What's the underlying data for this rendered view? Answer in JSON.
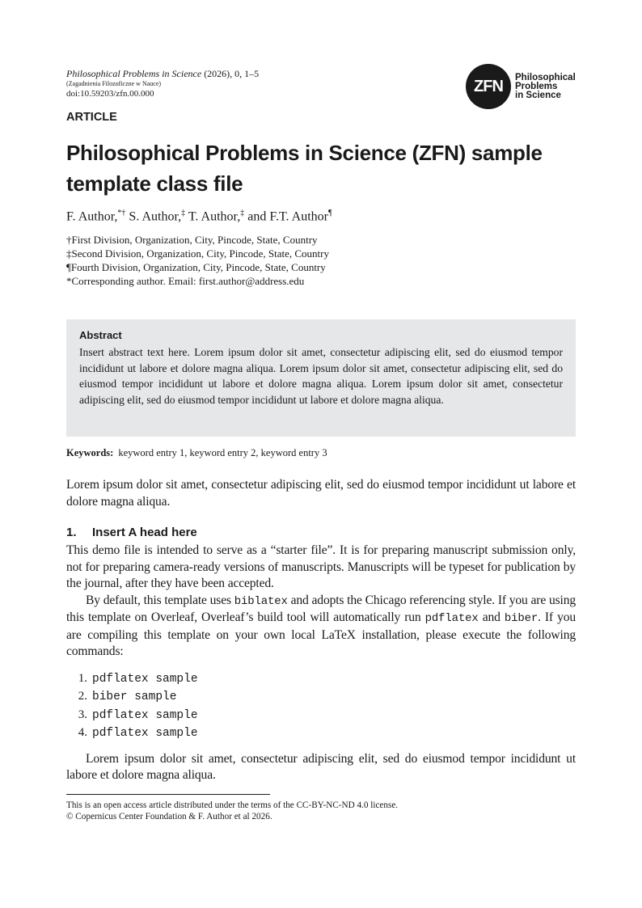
{
  "header": {
    "journal": "Philosophical Problems in Science",
    "year_issue": "(2026), 0, 1–5",
    "subtitle": "(Zagadnienia Filozoficzne w Nauce)",
    "doi": "doi:10.59203/zfn.00.000",
    "logo_mark": "ZFN",
    "logo_name": [
      "Philosophical",
      "Problems",
      "in Science"
    ]
  },
  "article_type": "ARTICLE",
  "title": "Philosophical Problems in Science (ZFN) sample template class file",
  "authors": [
    {
      "name": "F. Author,",
      "mark": "*†"
    },
    {
      "name": " S. Author,",
      "mark": "‡"
    },
    {
      "name": " T. Author,",
      "mark": "‡"
    },
    {
      "name": " and F.T. Author",
      "mark": "¶"
    }
  ],
  "affiliations": [
    "†First Division, Organization, City, Pincode, State, Country",
    "‡Second Division, Organization, City, Pincode, State, Country",
    "¶Fourth Division, Organization, City, Pincode, State, Country",
    "*Corresponding author. Email: first.author@address.edu"
  ],
  "abstract": {
    "heading": "Abstract",
    "text": "Insert abstract text here. Lorem ipsum dolor sit amet, consectetur adipiscing elit, sed do eiusmod tempor incididunt ut labore et dolore magna aliqua. Lorem ipsum dolor sit amet, consectetur adipiscing elit, sed do eiusmod tempor incididunt ut labore et dolore magna aliqua. Lorem ipsum dolor sit amet, consectetur adipiscing elit, sed do eiusmod tempor incididunt ut labore et dolore magna aliqua."
  },
  "keywords": {
    "label": "Keywords:",
    "text": "keyword entry 1, keyword entry 2, keyword entry 3"
  },
  "intro": "Lorem ipsum dolor sit amet, consectetur adipiscing elit, sed do eiusmod tempor incididunt ut labore et dolore magna aliqua.",
  "section1": {
    "number": "1.",
    "title": "Insert A head here",
    "para1": "This demo file is intended to serve as a “starter file”. It is for preparing manuscript submission only, not for preparing camera-ready versions of manuscripts. Manuscripts will be typeset for publication by the journal, after they have been accepted.",
    "para2": {
      "t1": "By default, this template uses ",
      "c1": "biblatex",
      "t2": " and adopts the Chicago referencing style. If you are using this template on Overleaf, Overleaf’s build tool will automatically run ",
      "c2": "pdflatex",
      "t3": " and ",
      "c3": "biber",
      "t4": ". If you are compiling this template on your own local LaTeX installation, please execute the following commands:"
    },
    "commands": [
      {
        "n": "1.",
        "cmd": "pdflatex sample"
      },
      {
        "n": "2.",
        "cmd": "biber sample"
      },
      {
        "n": "3.",
        "cmd": "pdflatex sample"
      },
      {
        "n": "4.",
        "cmd": "pdflatex sample"
      }
    ],
    "para3": "Lorem ipsum dolor sit amet, consectetur adipiscing elit, sed do eiusmod tempor incididunt ut labore et dolore magna aliqua."
  },
  "footnote": [
    "This is an open access article distributed under the terms of the CC-BY-NC-ND 4.0 license.",
    "© Copernicus Center Foundation & F. Author et al 2026."
  ]
}
